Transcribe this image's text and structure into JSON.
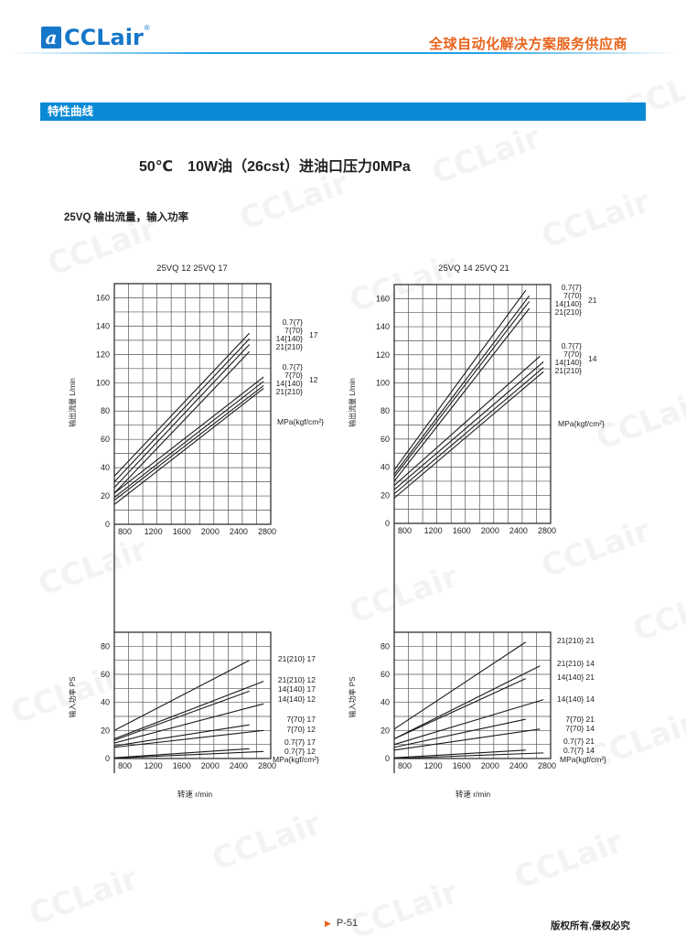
{
  "header": {
    "logo_text": "CCLair",
    "logo_reg": "®",
    "slogan": "全球自动化解决方案服务供应商"
  },
  "section_bar": "特性曲线",
  "main_title": "50℃　10W油（26cst）进油口压力0MPa",
  "sub_title": "25VQ 输出流量，输入功率",
  "watermark_text": "CCLair",
  "footer": {
    "page": "P-51",
    "copyright": "版权所有,侵权必究"
  },
  "colors": {
    "brand_blue": "#0a8ad6",
    "slogan_orange": "#e8641e",
    "line": "#222222",
    "grid": "#333333"
  },
  "chart_data": [
    {
      "type": "line",
      "title": "25VQ 12  25VQ 17",
      "ylabel": "输出流量  L/min",
      "xlabel": "",
      "xlim": [
        600,
        2800
      ],
      "ylim": [
        0,
        170
      ],
      "grid": true,
      "xticks": [
        800,
        1200,
        1600,
        2000,
        2400,
        2800
      ],
      "yticks": [
        0,
        20,
        40,
        60,
        80,
        100,
        120,
        140,
        160
      ],
      "legend_groups": [
        {
          "model": "17",
          "pressures": [
            "0.7{7}",
            "7{70}",
            "14{140}",
            "21{210}"
          ]
        },
        {
          "model": "12",
          "pressures": [
            "0.7{7}",
            "7{70}",
            "14{140}",
            "21{210}"
          ]
        }
      ],
      "unit_label": "MPa{kgf/cm²}",
      "series": [
        {
          "model": "17",
          "pressure": "0.7{7}",
          "x": [
            600,
            2500
          ],
          "y": [
            34,
            135
          ]
        },
        {
          "model": "17",
          "pressure": "7{70}",
          "x": [
            600,
            2500
          ],
          "y": [
            30,
            131
          ]
        },
        {
          "model": "17",
          "pressure": "14{140}",
          "x": [
            600,
            2500
          ],
          "y": [
            26,
            127
          ]
        },
        {
          "model": "17",
          "pressure": "21{210}",
          "x": [
            600,
            2500
          ],
          "y": [
            22,
            122
          ]
        },
        {
          "model": "12",
          "pressure": "0.7{7}",
          "x": [
            600,
            2700
          ],
          "y": [
            22,
            104
          ]
        },
        {
          "model": "12",
          "pressure": "7{70}",
          "x": [
            600,
            2700
          ],
          "y": [
            19,
            101
          ]
        },
        {
          "model": "12",
          "pressure": "14{140}",
          "x": [
            600,
            2700
          ],
          "y": [
            17,
            98
          ]
        },
        {
          "model": "12",
          "pressure": "21{210}",
          "x": [
            600,
            2700
          ],
          "y": [
            14,
            96
          ]
        }
      ]
    },
    {
      "type": "line",
      "title": "25VQ 14  25VQ 21",
      "ylabel": "输出流量  L/min",
      "xlabel": "",
      "xlim": [
        600,
        2800
      ],
      "ylim": [
        0,
        170
      ],
      "grid": true,
      "xticks": [
        800,
        1200,
        1600,
        2000,
        2400,
        2800
      ],
      "yticks": [
        0,
        20,
        40,
        60,
        80,
        100,
        120,
        140,
        160
      ],
      "legend_groups": [
        {
          "model": "21",
          "pressures": [
            "0.7{7}",
            "7{70}",
            "14{140}",
            "21{210}"
          ]
        },
        {
          "model": "14",
          "pressures": [
            "0.7{7}",
            "7{70}",
            "14{140}",
            "21{210}"
          ]
        }
      ],
      "unit_label": "MPa{kgf/cm²}",
      "series": [
        {
          "model": "21",
          "pressure": "0.7{7}",
          "x": [
            600,
            2450
          ],
          "y": [
            38,
            166
          ]
        },
        {
          "model": "21",
          "pressure": "7{70}",
          "x": [
            600,
            2500
          ],
          "y": [
            35,
            162
          ]
        },
        {
          "model": "21",
          "pressure": "14{140}",
          "x": [
            600,
            2500
          ],
          "y": [
            33,
            158
          ]
        },
        {
          "model": "21",
          "pressure": "21{210}",
          "x": [
            600,
            2500
          ],
          "y": [
            30,
            153
          ]
        },
        {
          "model": "14",
          "pressure": "0.7{7}",
          "x": [
            600,
            2650
          ],
          "y": [
            27,
            119
          ]
        },
        {
          "model": "14",
          "pressure": "7{70}",
          "x": [
            600,
            2700
          ],
          "y": [
            24,
            115
          ]
        },
        {
          "model": "14",
          "pressure": "14{140}",
          "x": [
            600,
            2700
          ],
          "y": [
            21,
            111
          ]
        },
        {
          "model": "14",
          "pressure": "21{210}",
          "x": [
            600,
            2700
          ],
          "y": [
            18,
            108
          ]
        }
      ]
    },
    {
      "type": "line",
      "title": "",
      "ylabel": "输入功率  PS",
      "xlabel": "转速  r/min",
      "xlim": [
        600,
        2800
      ],
      "ylim": [
        0,
        90
      ],
      "grid": true,
      "xticks": [
        800,
        1200,
        1600,
        2000,
        2400,
        2800
      ],
      "yticks": [
        0,
        20,
        40,
        60,
        80
      ],
      "unit_label": "MPa{kgf/cm²}",
      "series": [
        {
          "name": "21{210}  17",
          "x": [
            600,
            2500
          ],
          "y": [
            20,
            70
          ]
        },
        {
          "name": "21{210}  12",
          "x": [
            600,
            2700
          ],
          "y": [
            14,
            55
          ]
        },
        {
          "name": "14{140}  17",
          "x": [
            600,
            2500
          ],
          "y": [
            13,
            48
          ]
        },
        {
          "name": "14{140}  12",
          "x": [
            600,
            2700
          ],
          "y": [
            11,
            39
          ]
        },
        {
          "name": "7{70}  17",
          "x": [
            600,
            2500
          ],
          "y": [
            9,
            24
          ]
        },
        {
          "name": "7{70}  12",
          "x": [
            600,
            2700
          ],
          "y": [
            8,
            20
          ]
        },
        {
          "name": "0.7{7}  17",
          "x": [
            600,
            2500
          ],
          "y": [
            0.5,
            7
          ]
        },
        {
          "name": "0.7{7}  12",
          "x": [
            600,
            2700
          ],
          "y": [
            0.3,
            5
          ]
        }
      ]
    },
    {
      "type": "line",
      "title": "",
      "ylabel": "输入功率  PS",
      "xlabel": "转速  r/min",
      "xlim": [
        600,
        2800
      ],
      "ylim": [
        0,
        90
      ],
      "grid": true,
      "xticks": [
        800,
        1200,
        1600,
        2000,
        2400,
        2800
      ],
      "yticks": [
        0,
        20,
        40,
        60,
        80
      ],
      "unit_label": "MPa{kgf/cm²}",
      "series": [
        {
          "name": "21{210}  21",
          "x": [
            600,
            2450
          ],
          "y": [
            21,
            83
          ]
        },
        {
          "name": "21{210}  14",
          "x": [
            600,
            2650
          ],
          "y": [
            14,
            66
          ]
        },
        {
          "name": "14{140}  21",
          "x": [
            600,
            2450
          ],
          "y": [
            14,
            57
          ]
        },
        {
          "name": "14{140}  14",
          "x": [
            600,
            2700
          ],
          "y": [
            10,
            42
          ]
        },
        {
          "name": "7{70}  21",
          "x": [
            600,
            2450
          ],
          "y": [
            8,
            28
          ]
        },
        {
          "name": "7{70}  14",
          "x": [
            600,
            2650
          ],
          "y": [
            6,
            21
          ]
        },
        {
          "name": "0.7{7}  21",
          "x": [
            600,
            2450
          ],
          "y": [
            0.5,
            6
          ]
        },
        {
          "name": "0.7{7}  14",
          "x": [
            600,
            2700
          ],
          "y": [
            0,
            4
          ]
        }
      ]
    }
  ]
}
